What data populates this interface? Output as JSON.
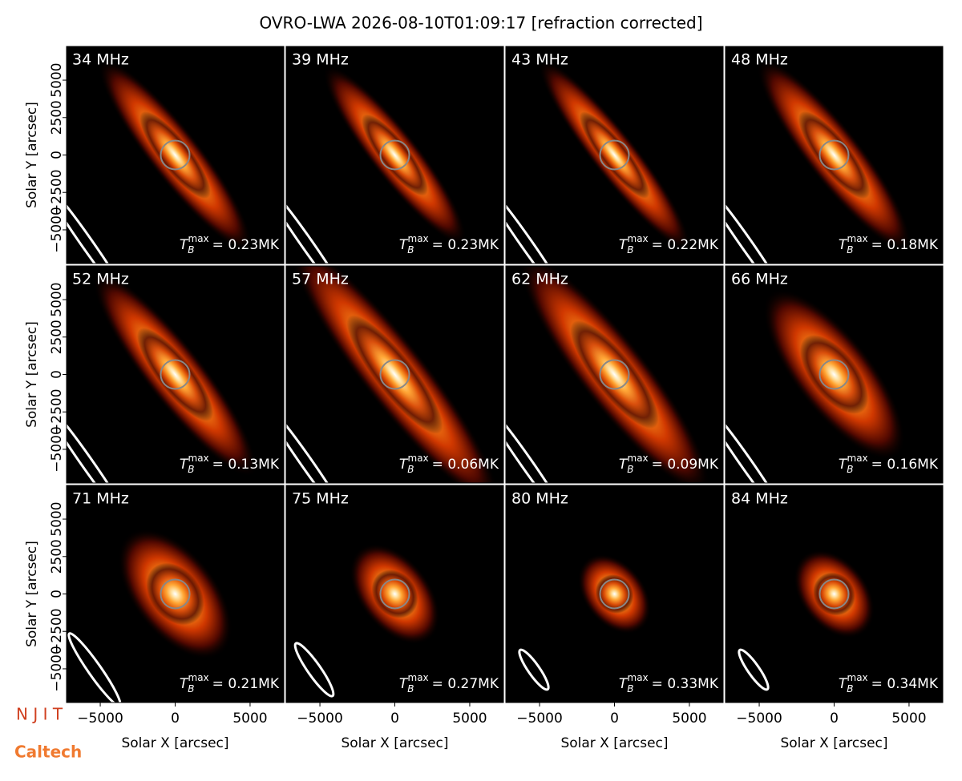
{
  "chart_data": {
    "type": "image",
    "title": "OVRO-LWA 2026-08-10T01:09:17 [refraction corrected]",
    "xlabel": "Solar X [arcsec]",
    "ylabel": "Solar Y [arcsec]",
    "xlim": [
      -7250,
      7250
    ],
    "ylim": [
      -7250,
      7250
    ],
    "xticks": [
      {
        "value": -5000,
        "label": "−5000"
      },
      0,
      5000
    ],
    "yticks": [
      {
        "value": -5000,
        "label": "−5000"
      },
      {
        "value": -2500,
        "label": "−2500"
      },
      0,
      2500,
      5000
    ],
    "tb_symbol": "T",
    "tb_sub": "B",
    "tb_sup": "max",
    "panels": [
      {
        "label": "34 MHz",
        "tb_max": 0.23,
        "tb_max_label": "= 0.23MK"
      },
      {
        "label": "39 MHz",
        "tb_max": 0.23,
        "tb_max_label": "= 0.23MK"
      },
      {
        "label": "43 MHz",
        "tb_max": 0.22,
        "tb_max_label": "= 0.22MK"
      },
      {
        "label": "48 MHz",
        "tb_max": 0.18,
        "tb_max_label": "= 0.18MK"
      },
      {
        "label": "52 MHz",
        "tb_max": 0.13,
        "tb_max_label": "= 0.13MK"
      },
      {
        "label": "57 MHz",
        "tb_max": 0.06,
        "tb_max_label": "= 0.06MK"
      },
      {
        "label": "62 MHz",
        "tb_max": 0.09,
        "tb_max_label": "= 0.09MK"
      },
      {
        "label": "66 MHz",
        "tb_max": 0.16,
        "tb_max_label": "= 0.16MK"
      },
      {
        "label": "71 MHz",
        "tb_max": 0.21,
        "tb_max_label": "= 0.21MK"
      },
      {
        "label": "75 MHz",
        "tb_max": 0.27,
        "tb_max_label": "= 0.27MK"
      },
      {
        "label": "80 MHz",
        "tb_max": 0.33,
        "tb_max_label": "= 0.33MK"
      },
      {
        "label": "84 MHz",
        "tb_max": 0.34,
        "tb_max_label": "= 0.34MK"
      }
    ],
    "logos": [
      "N J I T",
      "Caltech"
    ]
  }
}
